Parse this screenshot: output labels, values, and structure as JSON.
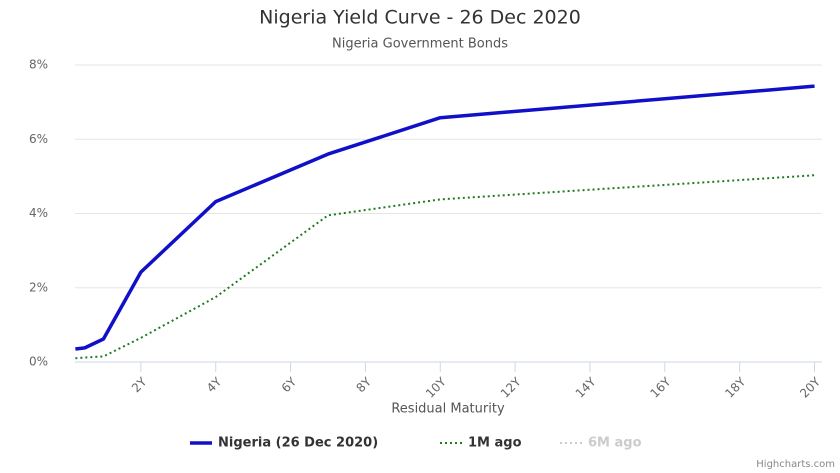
{
  "chart_data": {
    "type": "line",
    "title": "Nigeria Yield Curve - 26 Dec 2020",
    "subtitle": "Nigeria Government Bonds",
    "x_label": "Residual Maturity",
    "credits": "Highcharts.com",
    "x": [
      0.25,
      0.5,
      1,
      2,
      4,
      7,
      10,
      20
    ],
    "series": [
      {
        "name": "Nigeria (26 Dec 2020)",
        "color": "#1010c8",
        "dash": "solid",
        "visible": true,
        "values": [
          0.35,
          0.38,
          0.62,
          2.42,
          4.32,
          5.6,
          6.58,
          7.43
        ]
      },
      {
        "name": "1M ago",
        "color": "#1f7a1f",
        "dash": "dotted",
        "visible": true,
        "values": [
          0.1,
          0.12,
          0.15,
          0.65,
          1.75,
          3.95,
          4.38,
          5.03
        ]
      },
      {
        "name": "6M ago",
        "color": "#cccccc",
        "dash": "dotted",
        "visible": false,
        "values": [
          null,
          null,
          null,
          null,
          null,
          null,
          null,
          null
        ]
      }
    ],
    "xlim": [
      0.24,
      20.2
    ],
    "xticks": [
      {
        "value": 2,
        "label": "2Y"
      },
      {
        "value": 4,
        "label": "4Y"
      },
      {
        "value": 6,
        "label": "6Y"
      },
      {
        "value": 8,
        "label": "8Y"
      },
      {
        "value": 10,
        "label": "10Y"
      },
      {
        "value": 12,
        "label": "12Y"
      },
      {
        "value": 14,
        "label": "14Y"
      },
      {
        "value": 16,
        "label": "16Y"
      },
      {
        "value": 18,
        "label": "18Y"
      },
      {
        "value": 20,
        "label": "20Y"
      }
    ],
    "ylim": [
      0,
      8
    ],
    "yticks": [
      {
        "value": 0,
        "label": "0%"
      },
      {
        "value": 2,
        "label": "2%"
      },
      {
        "value": 4,
        "label": "4%"
      },
      {
        "value": 6,
        "label": "6%"
      },
      {
        "value": 8,
        "label": "8%"
      }
    ],
    "grid": true
  }
}
